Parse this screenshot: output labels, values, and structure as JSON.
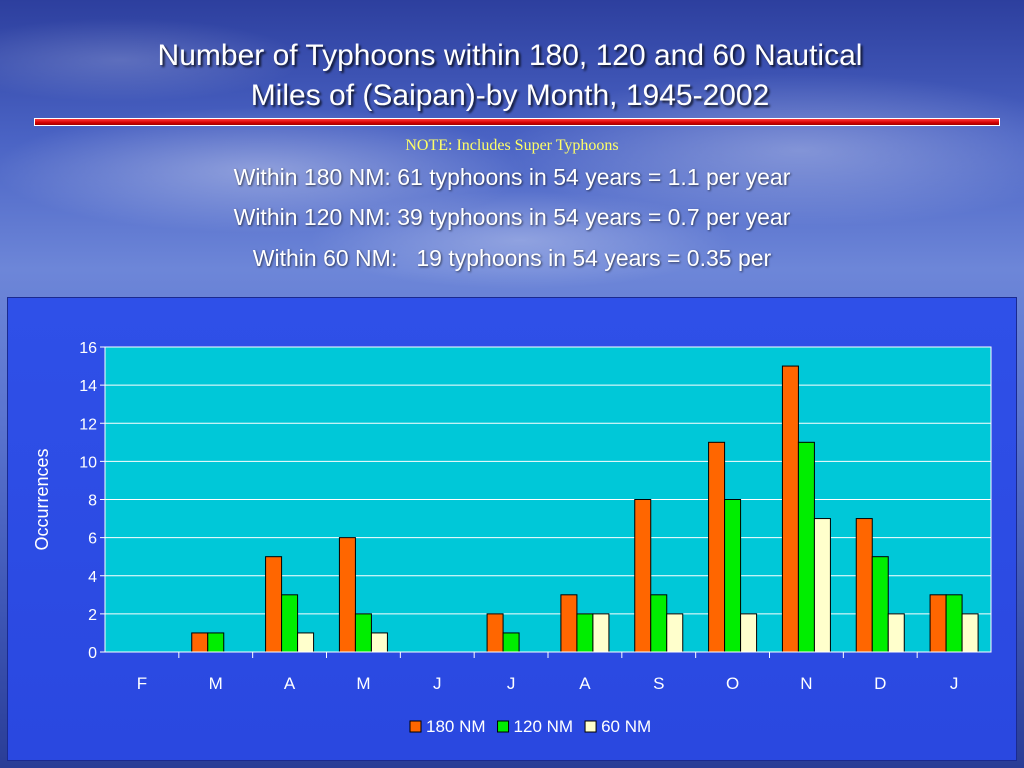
{
  "title_line1": "Number of Typhoons within 180, 120 and 60 Nautical",
  "title_line2": "Miles of (Saipan)-by Month, 1945-2002",
  "note": "NOTE: Includes Super Typhoons",
  "stats": [
    "Within 180 NM: 61 typhoons in 54 years = 1.1 per year",
    "Within 120 NM: 39 typhoons in 54 years = 0.7 per year",
    "Within 60 NM:   19 typhoons in 54 years = 0.35 per"
  ],
  "chart_data": {
    "type": "bar",
    "categories": [
      "F",
      "M",
      "A",
      "M",
      "J",
      "J",
      "A",
      "S",
      "O",
      "N",
      "D",
      "J"
    ],
    "series": [
      {
        "name": "180 NM",
        "color": "#ff6600",
        "values": [
          0,
          1,
          5,
          6,
          0,
          2,
          3,
          8,
          11,
          15,
          7,
          3
        ]
      },
      {
        "name": "120 NM",
        "color": "#00ee00",
        "values": [
          0,
          1,
          3,
          2,
          0,
          1,
          2,
          3,
          8,
          11,
          5,
          3
        ]
      },
      {
        "name": "60 NM",
        "color": "#ffffcc",
        "values": [
          0,
          0,
          1,
          1,
          0,
          0,
          2,
          2,
          2,
          7,
          2,
          2
        ]
      }
    ],
    "xlabel": "",
    "ylabel": "Occurrences",
    "ylim": [
      0,
      16
    ],
    "yticks": [
      0,
      2,
      4,
      6,
      8,
      10,
      12,
      14,
      16
    ],
    "grid": true,
    "legend": "bottom",
    "plot_background": "#00c8d8",
    "bar_outline": "#000000"
  }
}
